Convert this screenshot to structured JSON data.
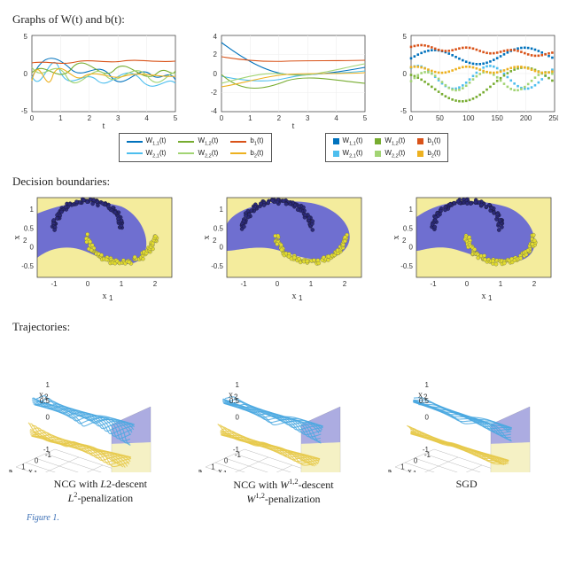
{
  "section1_title": "Graphs of W(t) and b(t):",
  "section2_title": "Decision boundaries:",
  "section3_title": "Trajectories:",
  "colors": {
    "bg": "#ffffff",
    "grid": "#eeeeee",
    "axis": "#333333",
    "w11": "#0072BD",
    "w21": "#4DBEEE",
    "w12": "#77AC30",
    "w22": "#A2D474",
    "b1": "#D95319",
    "b2": "#EDB120",
    "class_a_fill": "#6f6fd0",
    "class_b_fill": "#f4ec9d",
    "pt_a": "#2c2a7a",
    "pt_b": "#e2dc2e",
    "surf_a": "#4aa8e0",
    "surf_b": "#e6c94a"
  },
  "wb_line": {
    "xlabel": "t",
    "xticks": [
      0,
      1,
      2,
      3,
      4,
      5
    ],
    "yticks_left": [
      -5,
      0,
      5
    ],
    "yticks_mid": [
      -4,
      -2,
      0,
      2,
      4
    ],
    "legend": [
      {
        "label": "W",
        "sub": "1,1",
        "tail": "(t)",
        "key": "w11"
      },
      {
        "label": "W",
        "sub": "2,1",
        "tail": "(t)",
        "key": "w21"
      },
      {
        "label": "W",
        "sub": "1,2",
        "tail": "(t)",
        "key": "w12"
      },
      {
        "label": "W",
        "sub": "2,2",
        "tail": "(t)",
        "key": "w22"
      },
      {
        "label": "b",
        "sub": "1",
        "tail": "(t)",
        "key": "b1"
      },
      {
        "label": "b",
        "sub": "2",
        "tail": "(t)",
        "key": "b2"
      }
    ]
  },
  "wb_scatter": {
    "xticks": [
      0,
      50,
      100,
      150,
      200,
      250
    ],
    "yticks": [
      -5,
      0,
      5
    ],
    "legend": [
      {
        "label": "W",
        "sub": "1,1",
        "tail": "(t)",
        "key": "w11"
      },
      {
        "label": "W",
        "sub": "2,1",
        "tail": "(t)",
        "key": "w21"
      },
      {
        "label": "W",
        "sub": "1,2",
        "tail": "(t)",
        "key": "w12"
      },
      {
        "label": "W",
        "sub": "2,2",
        "tail": "(t)",
        "key": "w22"
      },
      {
        "label": "b",
        "sub": "1",
        "tail": "(t)",
        "key": "b1"
      },
      {
        "label": "b",
        "sub": "2",
        "tail": "(t)",
        "key": "b2"
      }
    ]
  },
  "decision": {
    "xlabel": "x₁",
    "ylabel": "x₂",
    "xticks": [
      -1,
      0,
      1,
      2
    ],
    "yticks": [
      -0.5,
      0,
      0.5,
      1
    ]
  },
  "traj": {
    "xlabel": "x₁",
    "ylabel": "x₂",
    "zlabel": "t",
    "xticks_t": [
      0,
      2,
      4
    ],
    "xticks_t_sgd": [
      0,
      100,
      200
    ],
    "xticks_x1": [
      -1,
      0,
      1,
      2
    ],
    "zticks_x2": [
      -1,
      0,
      0.5,
      1
    ]
  },
  "captions": [
    {
      "line1": "NCG with L2-descent",
      "line2": "L²-penalization"
    },
    {
      "line1": "NCG with W¹,²-descent",
      "line2": "W¹,²-penalization"
    },
    {
      "line1": "SGD",
      "line2": ""
    }
  ],
  "footer_text": "Figure 1."
}
